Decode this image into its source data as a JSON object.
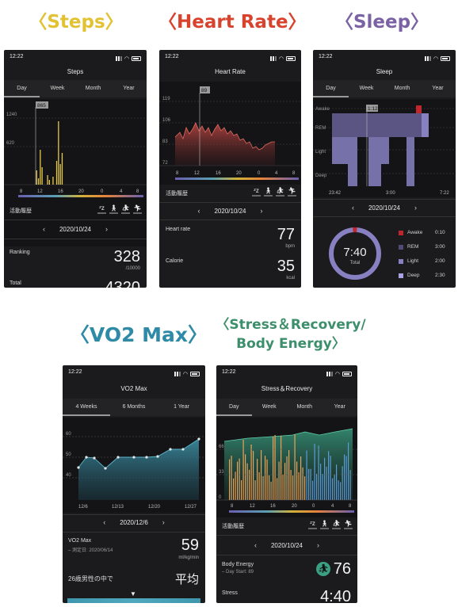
{
  "captions": {
    "steps": "〈Steps〉",
    "heart_rate": "〈Heart Rate〉",
    "sleep": "〈Sleep〉",
    "vo2": "〈VO2 Max〉",
    "stress_line1": "〈Stress＆Recovery/",
    "stress_line2": "Body Energy〉"
  },
  "status_time": "12:22",
  "tabs_day_week": [
    "Day",
    "Week",
    "Month",
    "Year"
  ],
  "date": "2020/10/24",
  "activity_label": "活動履歴",
  "activity_icons": [
    "sleep-z-icon",
    "walk-icon",
    "run-icon",
    "sprint-icon"
  ],
  "steps": {
    "title": "Steps",
    "y_ticks": [
      "1240",
      "620"
    ],
    "x_ticks": [
      "8",
      "12",
      "16",
      "20",
      "0",
      "4",
      "8"
    ],
    "marker": "865",
    "ranking_label": "Ranking",
    "ranking_value": "328",
    "ranking_unit": "/10000",
    "total_label": "Total",
    "total_value": "4320"
  },
  "heart_rate": {
    "title": "Heart Rate",
    "y_ticks": [
      "119",
      "106",
      "83",
      "72"
    ],
    "x_ticks": [
      "8",
      "12",
      "16",
      "20",
      "0",
      "4",
      "8"
    ],
    "marker": "89",
    "hr_label": "Heart rate",
    "hr_value": "77",
    "hr_unit": "bpm",
    "cal_label": "Calorie",
    "cal_value": "35",
    "cal_unit": "kcal"
  },
  "sleep": {
    "title": "Sleep",
    "stage_labels": [
      "Awake",
      "REM",
      "Light",
      "Deep"
    ],
    "x_ticks": [
      "23:42",
      "3:00",
      "7:22"
    ],
    "marker": "1:12",
    "total_time": "7:40",
    "total_label": "Total",
    "legend": [
      {
        "name": "Awake",
        "time": "0:10",
        "color": "#c0262d"
      },
      {
        "name": "REM",
        "time": "3:00",
        "color": "#4e4a73"
      },
      {
        "name": "Light",
        "time": "2:00",
        "color": "#8781c2"
      },
      {
        "name": "Deep",
        "time": "2:30",
        "color": "#a9a3e6"
      }
    ]
  },
  "vo2": {
    "title": "VO2 Max",
    "tabs": [
      "4 Weeks",
      "6 Months",
      "1 Year"
    ],
    "y_ticks": [
      "60",
      "50",
      "40"
    ],
    "x_ticks": [
      "12/6",
      "12/13",
      "12/20",
      "12/27"
    ],
    "date": "2020/12/6",
    "value_label": "VO2 Max",
    "measured": "– 測定日: 2020/06/14",
    "value": "59",
    "unit": "ml/kg/min",
    "compare_label": "26歳男性の中で",
    "compare_value": "平均"
  },
  "stress": {
    "title": "Stress＆Recovery",
    "y_ticks": [
      "66",
      "33",
      "0"
    ],
    "x_ticks": [
      "8",
      "12",
      "16",
      "20",
      "0",
      "4",
      "8"
    ],
    "body_energy_label": "Body Energy",
    "day_start": "– Day Start: 89",
    "body_energy_value": "76",
    "stress_label": "Stress",
    "stress_value": "4:40"
  }
}
